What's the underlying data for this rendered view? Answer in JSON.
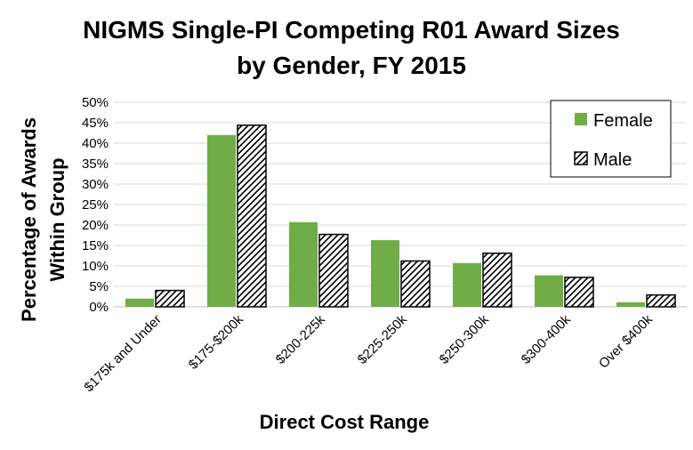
{
  "chart_data": {
    "type": "bar",
    "title_lines": [
      "NIGMS Single-PI Competing R01 Award Sizes",
      "by Gender, FY 2015"
    ],
    "xlabel": "Direct Cost Range",
    "ylabel_lines": [
      "Percentage of Awards",
      "Within Group"
    ],
    "categories": [
      "$175k and Under",
      "$175-$200k",
      "$200-225k",
      "$225-250k",
      "$250-300k",
      "$300-400k",
      "Over $400k"
    ],
    "series": [
      {
        "name": "Female",
        "values": [
          2.0,
          42.0,
          20.7,
          16.3,
          10.7,
          7.7,
          1.1
        ],
        "color": "#70ad47",
        "pattern": "solid"
      },
      {
        "name": "Male",
        "values": [
          4.0,
          44.4,
          17.7,
          11.2,
          13.1,
          7.2,
          2.9
        ],
        "color": "#000000",
        "pattern": "diagonal-hatch"
      }
    ],
    "ylim": [
      0,
      50
    ],
    "ytick_step": 5,
    "ytick_suffix": "%",
    "grid": true,
    "legend_position": "top-right"
  }
}
